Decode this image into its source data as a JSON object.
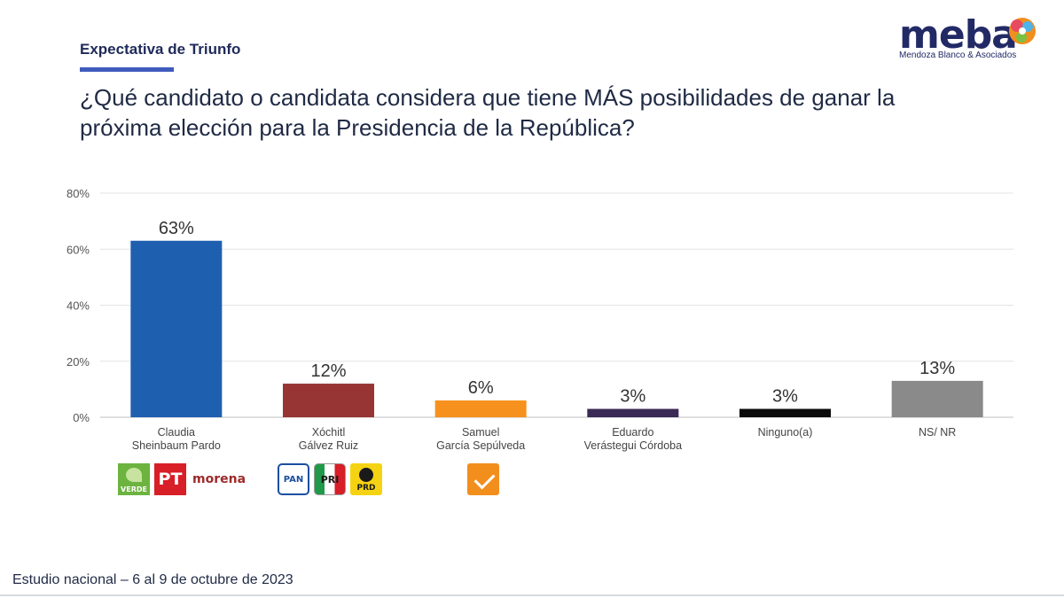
{
  "header": {
    "section_label": "Expectativa de Triunfo",
    "question": "¿Qué candidato o candidata considera que tiene MÁS posibilidades de ganar la próxima elección para la Presidencia de la República?",
    "brand_name": "meba",
    "brand_subtitle": "Mendoza Blanco & Asociados"
  },
  "footer": {
    "text": "Estudio nacional – 6 al 9 de octubre de 2023"
  },
  "chart_data": {
    "type": "bar",
    "title": "",
    "xlabel": "",
    "ylabel": "",
    "ylim": [
      0,
      80
    ],
    "yticks": [
      "0%",
      "20%",
      "40%",
      "60%",
      "80%"
    ],
    "grid": true,
    "categories": [
      [
        "Claudia",
        "Sheinbaum Pardo"
      ],
      [
        "Xóchitl",
        "Gálvez Ruiz"
      ],
      [
        "Samuel",
        "García Sepúlveda"
      ],
      [
        "Eduardo",
        "Verástegui Córdoba"
      ],
      [
        "Ninguno(a)"
      ],
      [
        "NS/ NR"
      ]
    ],
    "values": [
      63,
      12,
      6,
      3,
      3,
      13
    ],
    "data_labels": [
      "63%",
      "12%",
      "6%",
      "3%",
      "3%",
      "13%"
    ],
    "colors": [
      "#1f5fb0",
      "#973535",
      "#f7911d",
      "#3a2a55",
      "#0b0b0b",
      "#8a8a8a"
    ]
  },
  "party_logos": {
    "sheinbaum": [
      {
        "icon": "verde-logo-icon",
        "text": "VERDE"
      },
      {
        "icon": "pt-logo-icon",
        "text": "PT"
      },
      {
        "icon": "morena-logo-icon",
        "text": "morena"
      }
    ],
    "galvez": [
      {
        "icon": "pan-logo-icon",
        "text": "PAN"
      },
      {
        "icon": "pri-logo-icon",
        "text": "PRI"
      },
      {
        "icon": "prd-logo-icon",
        "text": "PRD"
      }
    ],
    "garcia": [
      {
        "icon": "movimiento-ciudadano-logo-icon"
      }
    ]
  }
}
